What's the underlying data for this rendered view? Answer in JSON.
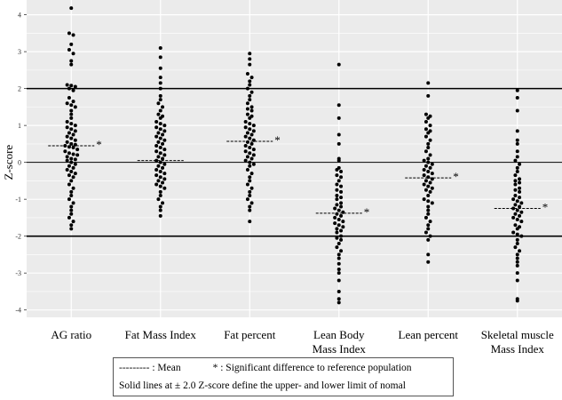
{
  "chart_data": {
    "type": "scatter",
    "subtype": "dot-plot",
    "ylabel": "Z-score",
    "ylim": [
      -4.2,
      4.4
    ],
    "yticks": [
      4,
      3,
      2,
      1,
      0,
      -1,
      -2,
      -3,
      -4
    ],
    "reference_lines": [
      2,
      0,
      -2
    ],
    "grid": true,
    "categories": [
      {
        "label_lines": [
          "AG ratio"
        ],
        "mean": 0.45,
        "significant": true
      },
      {
        "label_lines": [
          "Fat Mass Index"
        ],
        "mean": 0.05,
        "significant": false
      },
      {
        "label_lines": [
          "Fat percent"
        ],
        "mean": 0.57,
        "significant": true
      },
      {
        "label_lines": [
          "Lean Body",
          "Mass Index"
        ],
        "mean": -1.38,
        "significant": true
      },
      {
        "label_lines": [
          "Lean percent"
        ],
        "mean": -0.42,
        "significant": true
      },
      {
        "label_lines": [
          "Skeletal muscle",
          "Mass Index"
        ],
        "mean": -1.25,
        "significant": true
      }
    ],
    "series": [
      {
        "name": "AG ratio",
        "values": [
          4.18,
          3.5,
          3.45,
          3.2,
          3.05,
          2.95,
          2.75,
          2.65,
          2.1,
          2.08,
          2.05,
          2.0,
          1.95,
          1.75,
          1.65,
          1.6,
          1.55,
          1.5,
          1.4,
          1.3,
          1.2,
          1.1,
          1.05,
          1.0,
          0.95,
          0.9,
          0.85,
          0.8,
          0.75,
          0.7,
          0.65,
          0.6,
          0.55,
          0.5,
          0.48,
          0.45,
          0.42,
          0.4,
          0.35,
          0.3,
          0.25,
          0.22,
          0.2,
          0.15,
          0.1,
          0.08,
          0.05,
          0.0,
          -0.05,
          -0.1,
          -0.15,
          -0.2,
          -0.25,
          -0.3,
          -0.35,
          -0.4,
          -0.5,
          -0.6,
          -0.7,
          -0.8,
          -0.9,
          -1.0,
          -1.1,
          -1.2,
          -1.3,
          -1.4,
          -1.5,
          -1.6,
          -1.7,
          -1.8
        ]
      },
      {
        "name": "Fat Mass Index",
        "values": [
          3.1,
          2.85,
          2.55,
          2.3,
          2.15,
          2.0,
          1.8,
          1.7,
          1.6,
          1.5,
          1.4,
          1.3,
          1.25,
          1.2,
          1.1,
          1.05,
          1.0,
          0.95,
          0.9,
          0.85,
          0.8,
          0.75,
          0.7,
          0.65,
          0.6,
          0.55,
          0.5,
          0.45,
          0.4,
          0.35,
          0.3,
          0.25,
          0.2,
          0.15,
          0.1,
          0.05,
          0.0,
          -0.05,
          -0.1,
          -0.15,
          -0.2,
          -0.25,
          -0.3,
          -0.35,
          -0.4,
          -0.45,
          -0.5,
          -0.55,
          -0.6,
          -0.65,
          -0.7,
          -0.8,
          -0.9,
          -1.0,
          -1.1,
          -1.2,
          -1.3,
          -1.45
        ]
      },
      {
        "name": "Fat percent",
        "values": [
          2.95,
          2.8,
          2.65,
          2.4,
          2.3,
          2.2,
          2.1,
          2.0,
          1.9,
          1.8,
          1.7,
          1.6,
          1.5,
          1.45,
          1.4,
          1.3,
          1.25,
          1.2,
          1.1,
          1.05,
          1.0,
          0.95,
          0.9,
          0.85,
          0.8,
          0.75,
          0.7,
          0.65,
          0.6,
          0.55,
          0.5,
          0.45,
          0.4,
          0.35,
          0.3,
          0.25,
          0.2,
          0.15,
          0.1,
          0.05,
          0.0,
          -0.05,
          -0.1,
          -0.2,
          -0.3,
          -0.4,
          -0.5,
          -0.6,
          -0.7,
          -0.8,
          -0.9,
          -1.0,
          -1.1,
          -1.2,
          -1.3,
          -1.6
        ]
      },
      {
        "name": "Lean Body Mass Index",
        "values": [
          2.65,
          1.55,
          1.2,
          0.75,
          0.5,
          0.1,
          0.05,
          -0.15,
          -0.2,
          -0.25,
          -0.35,
          -0.4,
          -0.5,
          -0.6,
          -0.65,
          -0.75,
          -0.8,
          -0.9,
          -0.95,
          -1.0,
          -1.1,
          -1.15,
          -1.2,
          -1.25,
          -1.3,
          -1.35,
          -1.4,
          -1.45,
          -1.5,
          -1.55,
          -1.6,
          -1.65,
          -1.7,
          -1.75,
          -1.8,
          -1.85,
          -1.9,
          -2.0,
          -2.05,
          -2.1,
          -2.2,
          -2.3,
          -2.4,
          -2.5,
          -2.6,
          -2.75,
          -2.9,
          -3.0,
          -3.2,
          -3.5,
          -3.7,
          -3.8
        ]
      },
      {
        "name": "Lean percent",
        "values": [
          2.15,
          1.8,
          1.3,
          1.25,
          1.2,
          1.1,
          1.0,
          0.9,
          0.85,
          0.8,
          0.7,
          0.6,
          0.5,
          0.4,
          0.3,
          0.2,
          0.1,
          0.05,
          0.0,
          -0.05,
          -0.1,
          -0.15,
          -0.2,
          -0.25,
          -0.3,
          -0.35,
          -0.4,
          -0.45,
          -0.5,
          -0.55,
          -0.6,
          -0.65,
          -0.7,
          -0.75,
          -0.8,
          -0.9,
          -1.0,
          -1.05,
          -1.1,
          -1.2,
          -1.3,
          -1.4,
          -1.5,
          -1.6,
          -1.7,
          -1.8,
          -1.9,
          -2.0,
          -2.1,
          -2.5,
          -2.7
        ]
      },
      {
        "name": "Skeletal muscle Mass Index",
        "values": [
          1.95,
          1.75,
          1.4,
          0.85,
          0.6,
          0.5,
          0.3,
          0.15,
          0.05,
          -0.05,
          -0.15,
          -0.25,
          -0.35,
          -0.45,
          -0.5,
          -0.55,
          -0.6,
          -0.7,
          -0.75,
          -0.8,
          -0.9,
          -0.95,
          -1.0,
          -1.05,
          -1.1,
          -1.15,
          -1.2,
          -1.25,
          -1.3,
          -1.35,
          -1.4,
          -1.45,
          -1.5,
          -1.55,
          -1.6,
          -1.7,
          -1.75,
          -1.8,
          -1.9,
          -1.95,
          -2.0,
          -2.1,
          -2.2,
          -2.3,
          -2.4,
          -2.5,
          -2.6,
          -2.7,
          -2.8,
          -3.0,
          -3.2,
          -3.7,
          -3.75
        ]
      }
    ],
    "legend": {
      "mean_symbol": "---------",
      "mean_label": " : Mean",
      "sig_symbol": "*",
      "sig_label": " : Significant difference to reference population",
      "note": "Solid lines at ± 2.0 Z-score define the upper- and lower limit of nomal"
    }
  },
  "colors": {
    "panel": "#ebebeb",
    "grid": "#ffffff",
    "dots": "#000000",
    "lines": "#000000"
  }
}
